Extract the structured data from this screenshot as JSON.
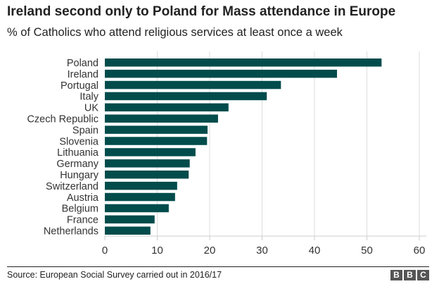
{
  "title": "Ireland second only to Poland for Mass attendance in Europe",
  "subtitle": "% of Catholics who attend religious services at least once a week",
  "source": "Source: European Social Survey carried out in 2016/17",
  "logo": "BBC",
  "chart_data": {
    "type": "bar",
    "orientation": "horizontal",
    "categories": [
      "Poland",
      "Ireland",
      "Portugal",
      "Italy",
      "UK",
      "Czech Republic",
      "Spain",
      "Slovenia",
      "Lithuania",
      "Germany",
      "Hungary",
      "Switzerland",
      "Austria",
      "Belgium",
      "France",
      "Netherlands"
    ],
    "values": [
      52.8,
      44.3,
      33.6,
      30.9,
      23.6,
      21.6,
      19.6,
      19.5,
      17.3,
      16.2,
      16.0,
      13.8,
      13.4,
      12.2,
      9.5,
      8.7
    ],
    "xlim": [
      0,
      60
    ],
    "xticks": [
      0,
      10,
      20,
      30,
      40,
      50,
      60
    ],
    "grid": true,
    "bar_color": "#034c4c"
  }
}
